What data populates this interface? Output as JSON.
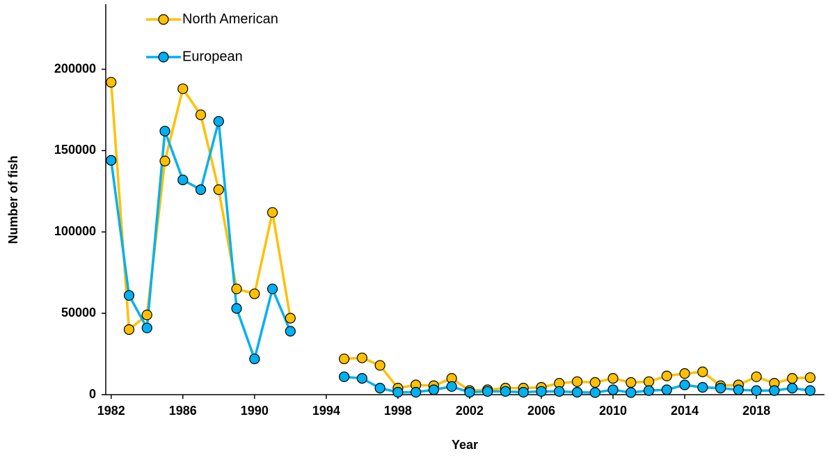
{
  "chart_data": {
    "type": "line",
    "x_label": "Year",
    "y_label": "Number of fish",
    "x": [
      1982,
      1983,
      1984,
      1985,
      1986,
      1987,
      1988,
      1989,
      1990,
      1991,
      1992,
      1993,
      1994,
      1995,
      1996,
      1997,
      1998,
      1999,
      2000,
      2001,
      2002,
      2003,
      2004,
      2005,
      2006,
      2007,
      2008,
      2009,
      2010,
      2011,
      2012,
      2013,
      2014,
      2015,
      2016,
      2017,
      2018,
      2019,
      2020,
      2021
    ],
    "series": [
      {
        "name": "North American",
        "color": "#FFC000",
        "values": [
          192000,
          40000,
          49000,
          143600,
          188000,
          172000,
          126000,
          65000,
          62000,
          112000,
          47000,
          null,
          null,
          22000,
          22600,
          18000,
          4000,
          6000,
          5500,
          10000,
          2500,
          3000,
          4000,
          4000,
          4500,
          7000,
          8000,
          7500,
          10000,
          7500,
          8000,
          11500,
          13000,
          14000,
          5500,
          6000,
          11000,
          7000,
          10000,
          10500
        ]
      },
      {
        "name": "European",
        "color": "#00B0F0",
        "values": [
          144000,
          61000,
          41000,
          162000,
          132000,
          126000,
          168000,
          53000,
          22000,
          65000,
          39000,
          null,
          null,
          11000,
          10000,
          4000,
          1500,
          1500,
          3000,
          5000,
          1500,
          2000,
          2000,
          1500,
          2000,
          2000,
          1500,
          1300,
          3000,
          1300,
          2500,
          3000,
          6000,
          4500,
          4000,
          3000,
          2500,
          2500,
          4000,
          2500
        ]
      }
    ],
    "xlim": [
      1981.7,
      2021.8
    ],
    "xticks": [
      1982,
      1986,
      1990,
      1994,
      1998,
      2002,
      2006,
      2010,
      2014,
      2018
    ],
    "ylim": [
      0,
      240000
    ],
    "yticks": [
      0,
      50000,
      100000,
      150000,
      200000
    ],
    "grid": false,
    "legend": "upper left"
  }
}
